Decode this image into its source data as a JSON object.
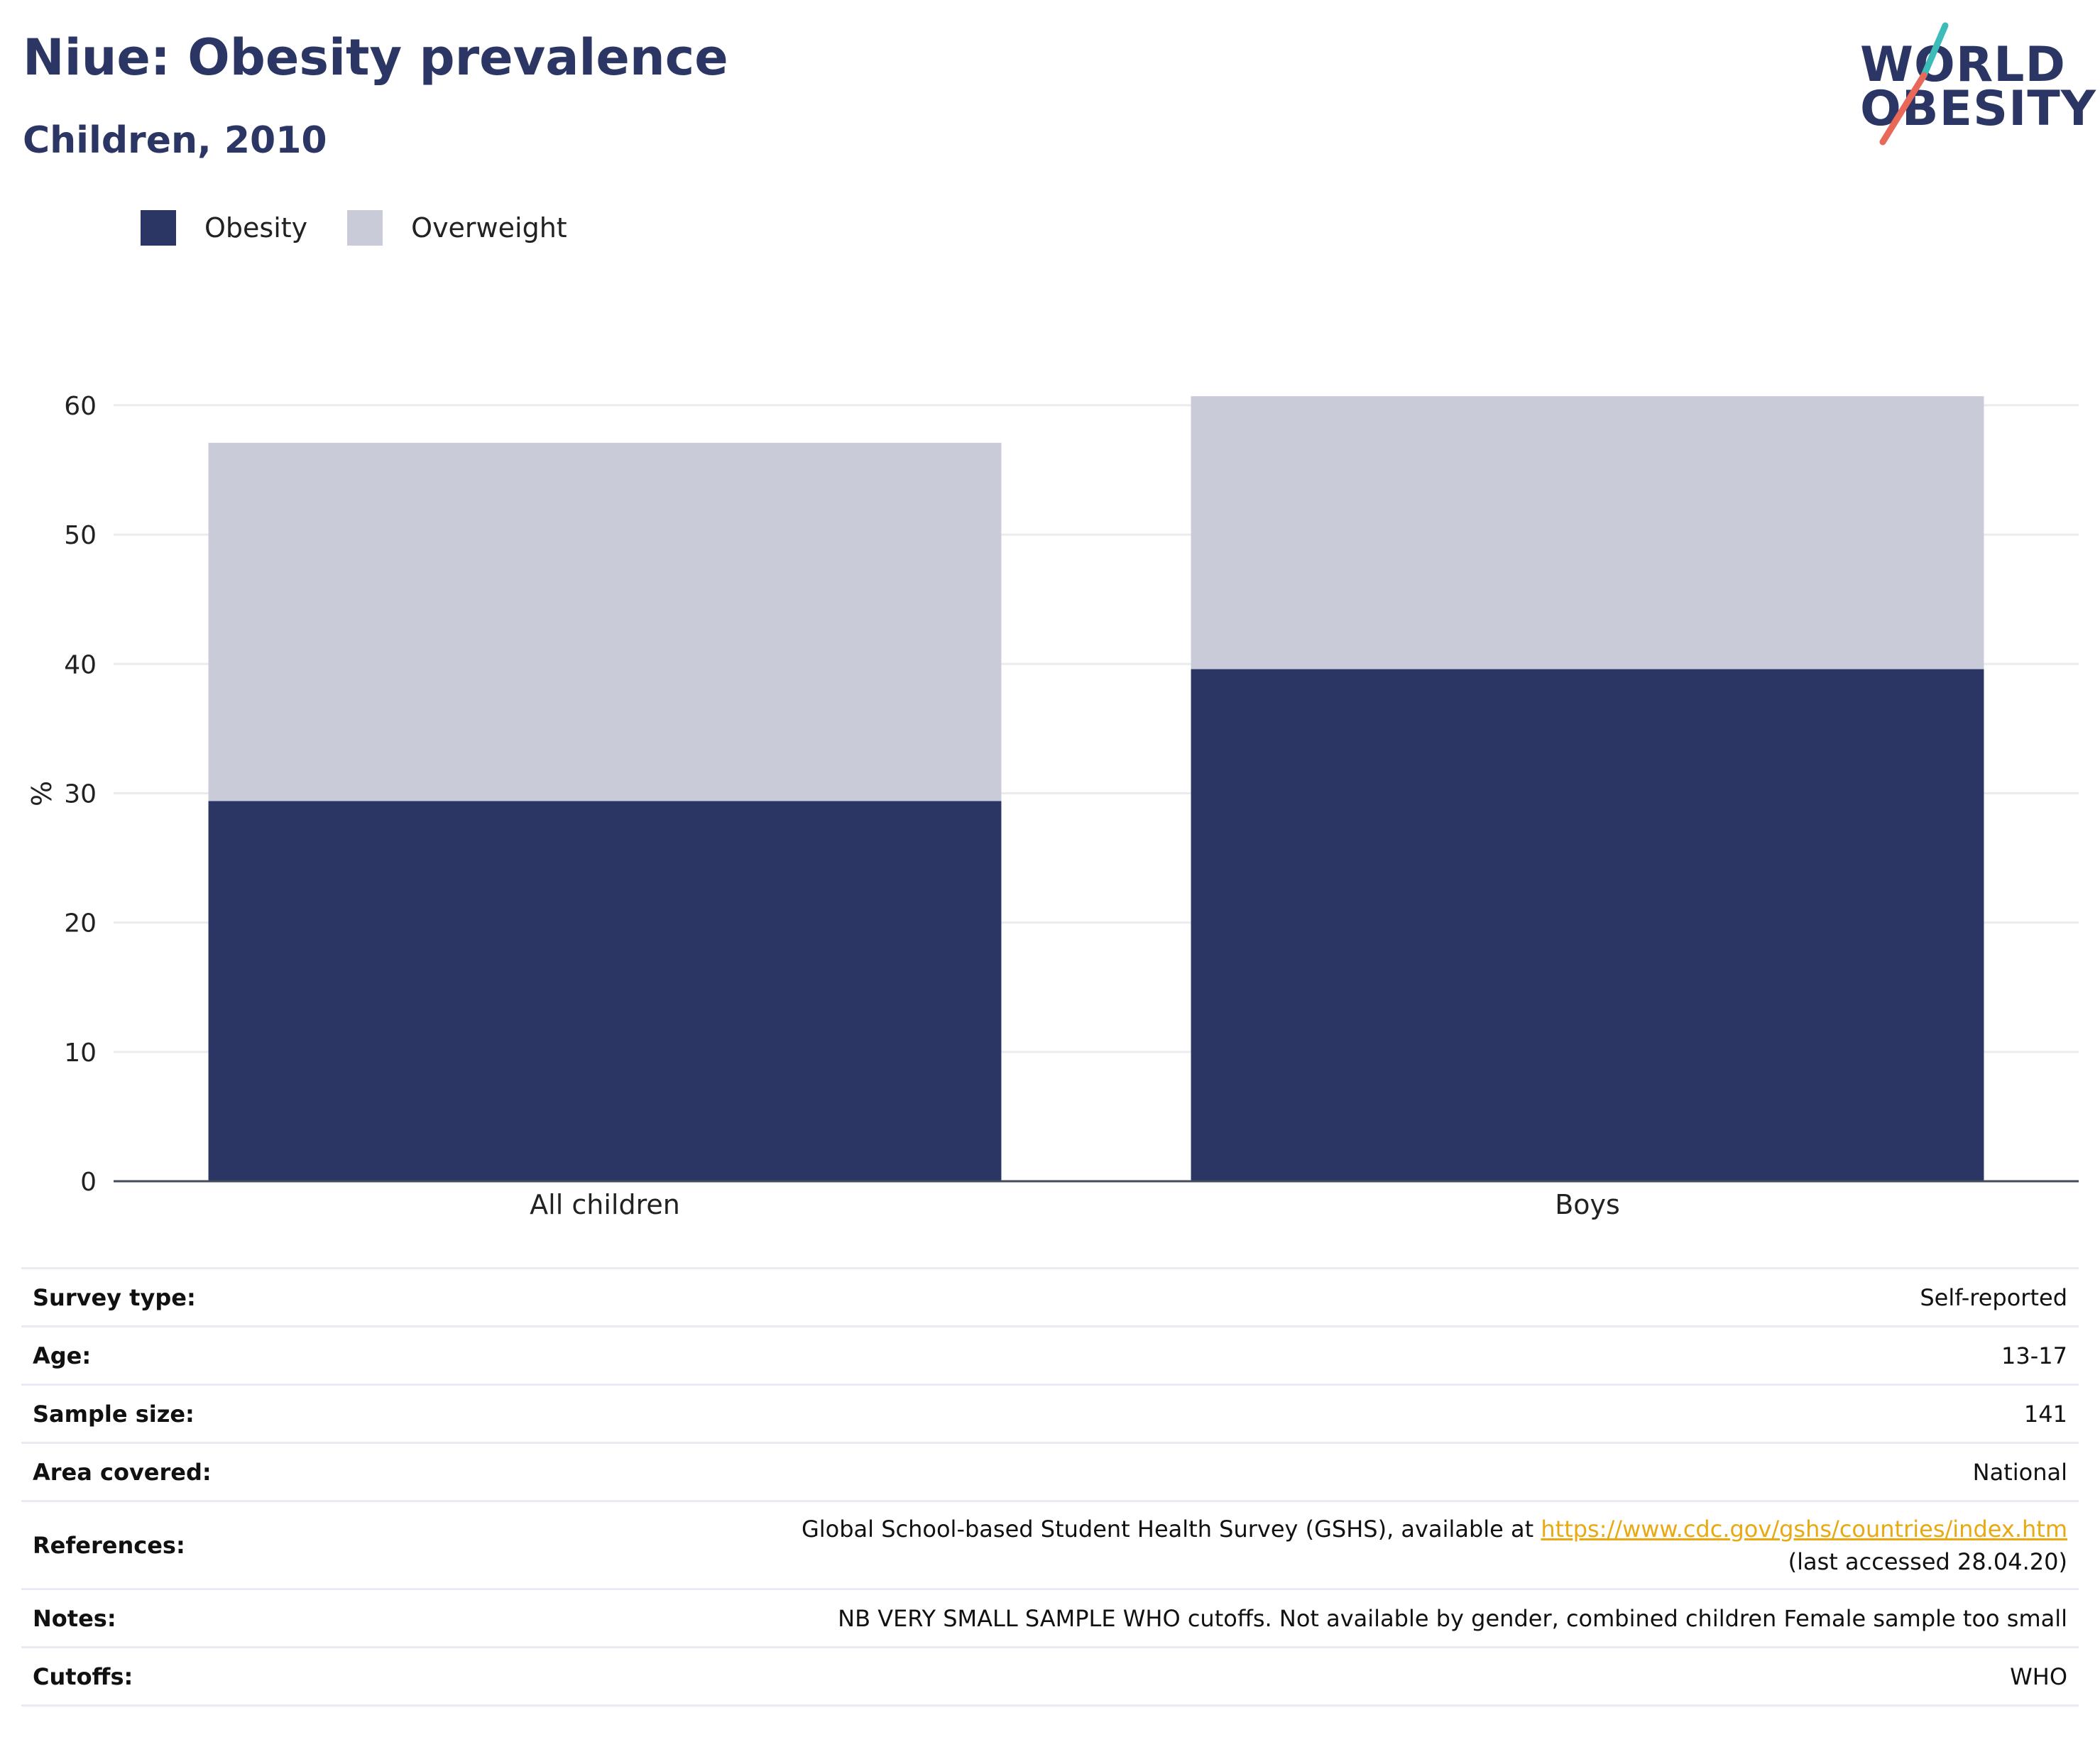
{
  "header": {
    "title": "Niue: Obesity prevalence",
    "subtitle": "Children, 2010"
  },
  "logo": {
    "line1": "WORLD",
    "line2": "OBESITY",
    "slash_colors": [
      "#3cbcb9",
      "#e8685a"
    ]
  },
  "legend": [
    {
      "label": "Obesity",
      "color": "#2b3664"
    },
    {
      "label": "Overweight",
      "color": "#c9ccd8"
    }
  ],
  "chart_data": {
    "type": "bar",
    "stacked": true,
    "categories": [
      "All children",
      "Boys"
    ],
    "series": [
      {
        "name": "Obesity",
        "values": [
          29.4,
          39.6
        ],
        "color": "#2b3664"
      },
      {
        "name": "Overweight",
        "values": [
          27.7,
          21.1
        ],
        "color": "#c9ccd8"
      }
    ],
    "ylabel": "%",
    "yticks": [
      0,
      10,
      20,
      30,
      40,
      50,
      60
    ],
    "ylim": [
      0,
      60.6
    ],
    "grid": true,
    "legend_position": "top-left"
  },
  "info_table": [
    {
      "key": "Survey type:",
      "value": "Self-reported"
    },
    {
      "key": "Age:",
      "value": "13-17"
    },
    {
      "key": "Sample size:",
      "value": "141"
    },
    {
      "key": "Area covered:",
      "value": "National"
    },
    {
      "key": "References:",
      "value_prefix": "Global School-based Student Health Survey (GSHS), available at ",
      "link": "https://www.cdc.gov/gshs/countries/index.htm",
      "value_suffix": " (last accessed 28.04.20)"
    },
    {
      "key": "Notes:",
      "value": "NB VERY SMALL SAMPLE WHO cutoffs. Not available by gender, combined children Female sample too small"
    },
    {
      "key": "Cutoffs:",
      "value": "WHO"
    }
  ]
}
